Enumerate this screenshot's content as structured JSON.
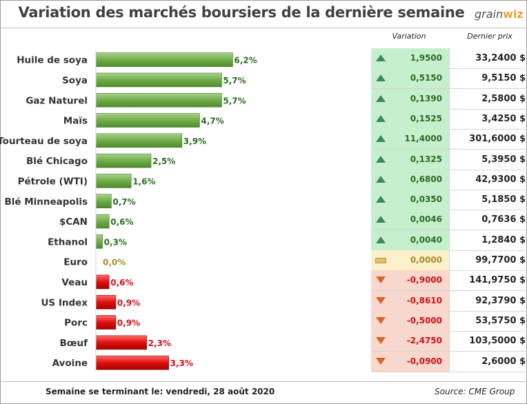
{
  "title": "Variation des marchés boursiers de la dernière semaine",
  "logo": {
    "text_a": "grain",
    "text_b": "wiz"
  },
  "table_headers": {
    "variation": "Variation",
    "price": "Dernier prix"
  },
  "footer": {
    "left": "Semaine se terminant le:  vendredi, 28 août 2020",
    "right": "Source: CME Group"
  },
  "colors": {
    "positive_bar": "#70ad47",
    "negative_bar": "#e01010",
    "positive_bg": "#c6efce",
    "neutral_bg": "#fdf1cc",
    "negative_bg": "#f8d7cc",
    "positive_text": "#2f6b25",
    "neutral_text": "#a88a2a",
    "negative_text": "#d0101a"
  },
  "chart_data": {
    "type": "bar",
    "orientation": "horizontal",
    "title": "Variation des marchés boursiers de la dernière semaine",
    "categories": [
      "Huile de soya",
      "Soya",
      "Gaz Naturel",
      "Maïs",
      "Tourteau de soya",
      "Blé Chicago",
      "Pétrole (WTI)",
      "Blé Minneapolis",
      "$CAN",
      "Ethanol",
      "Euro",
      "Veau",
      "US Index",
      "Porc",
      "Bœuf",
      "Avoine"
    ],
    "values": [
      6.2,
      5.7,
      5.7,
      4.7,
      3.9,
      2.5,
      1.6,
      0.7,
      0.6,
      0.3,
      0.0,
      -0.6,
      -0.9,
      -0.9,
      -2.3,
      -3.3
    ],
    "value_labels": [
      "6,2%",
      "5,7%",
      "5,7%",
      "4,7%",
      "3,9%",
      "2,5%",
      "1,6%",
      "0,7%",
      "0,6%",
      "0,3%",
      "0,0%",
      "0,6%",
      "0,9%",
      "0,9%",
      "2,3%",
      "3,3%"
    ],
    "legend": "none",
    "grid": false
  },
  "table": [
    {
      "direction": "up",
      "variation": "1,9500",
      "price": "33,2400 $"
    },
    {
      "direction": "up",
      "variation": "0,5150",
      "price": "9,5150 $"
    },
    {
      "direction": "up",
      "variation": "0,1390",
      "price": "2,5800 $"
    },
    {
      "direction": "up",
      "variation": "0,1525",
      "price": "3,4250 $"
    },
    {
      "direction": "up",
      "variation": "11,4000",
      "price": "301,6000 $"
    },
    {
      "direction": "up",
      "variation": "0,1325",
      "price": "5,3950 $"
    },
    {
      "direction": "up",
      "variation": "0,6800",
      "price": "42,9300 $"
    },
    {
      "direction": "up",
      "variation": "0,0350",
      "price": "5,1850 $"
    },
    {
      "direction": "up",
      "variation": "0,0046",
      "price": "0,7636 $"
    },
    {
      "direction": "up",
      "variation": "0,0040",
      "price": "1,2840 $"
    },
    {
      "direction": "flat",
      "variation": "0,0000",
      "price": "99,7700 $"
    },
    {
      "direction": "down",
      "variation": "-0,9000",
      "price": "141,9750 $"
    },
    {
      "direction": "down",
      "variation": "-0,8610",
      "price": "92,3790 $"
    },
    {
      "direction": "down",
      "variation": "-0,5000",
      "price": "53,5750 $"
    },
    {
      "direction": "down",
      "variation": "-2,4750",
      "price": "103,5000 $"
    },
    {
      "direction": "down",
      "variation": "-0,0900",
      "price": "2,6000 $"
    }
  ]
}
